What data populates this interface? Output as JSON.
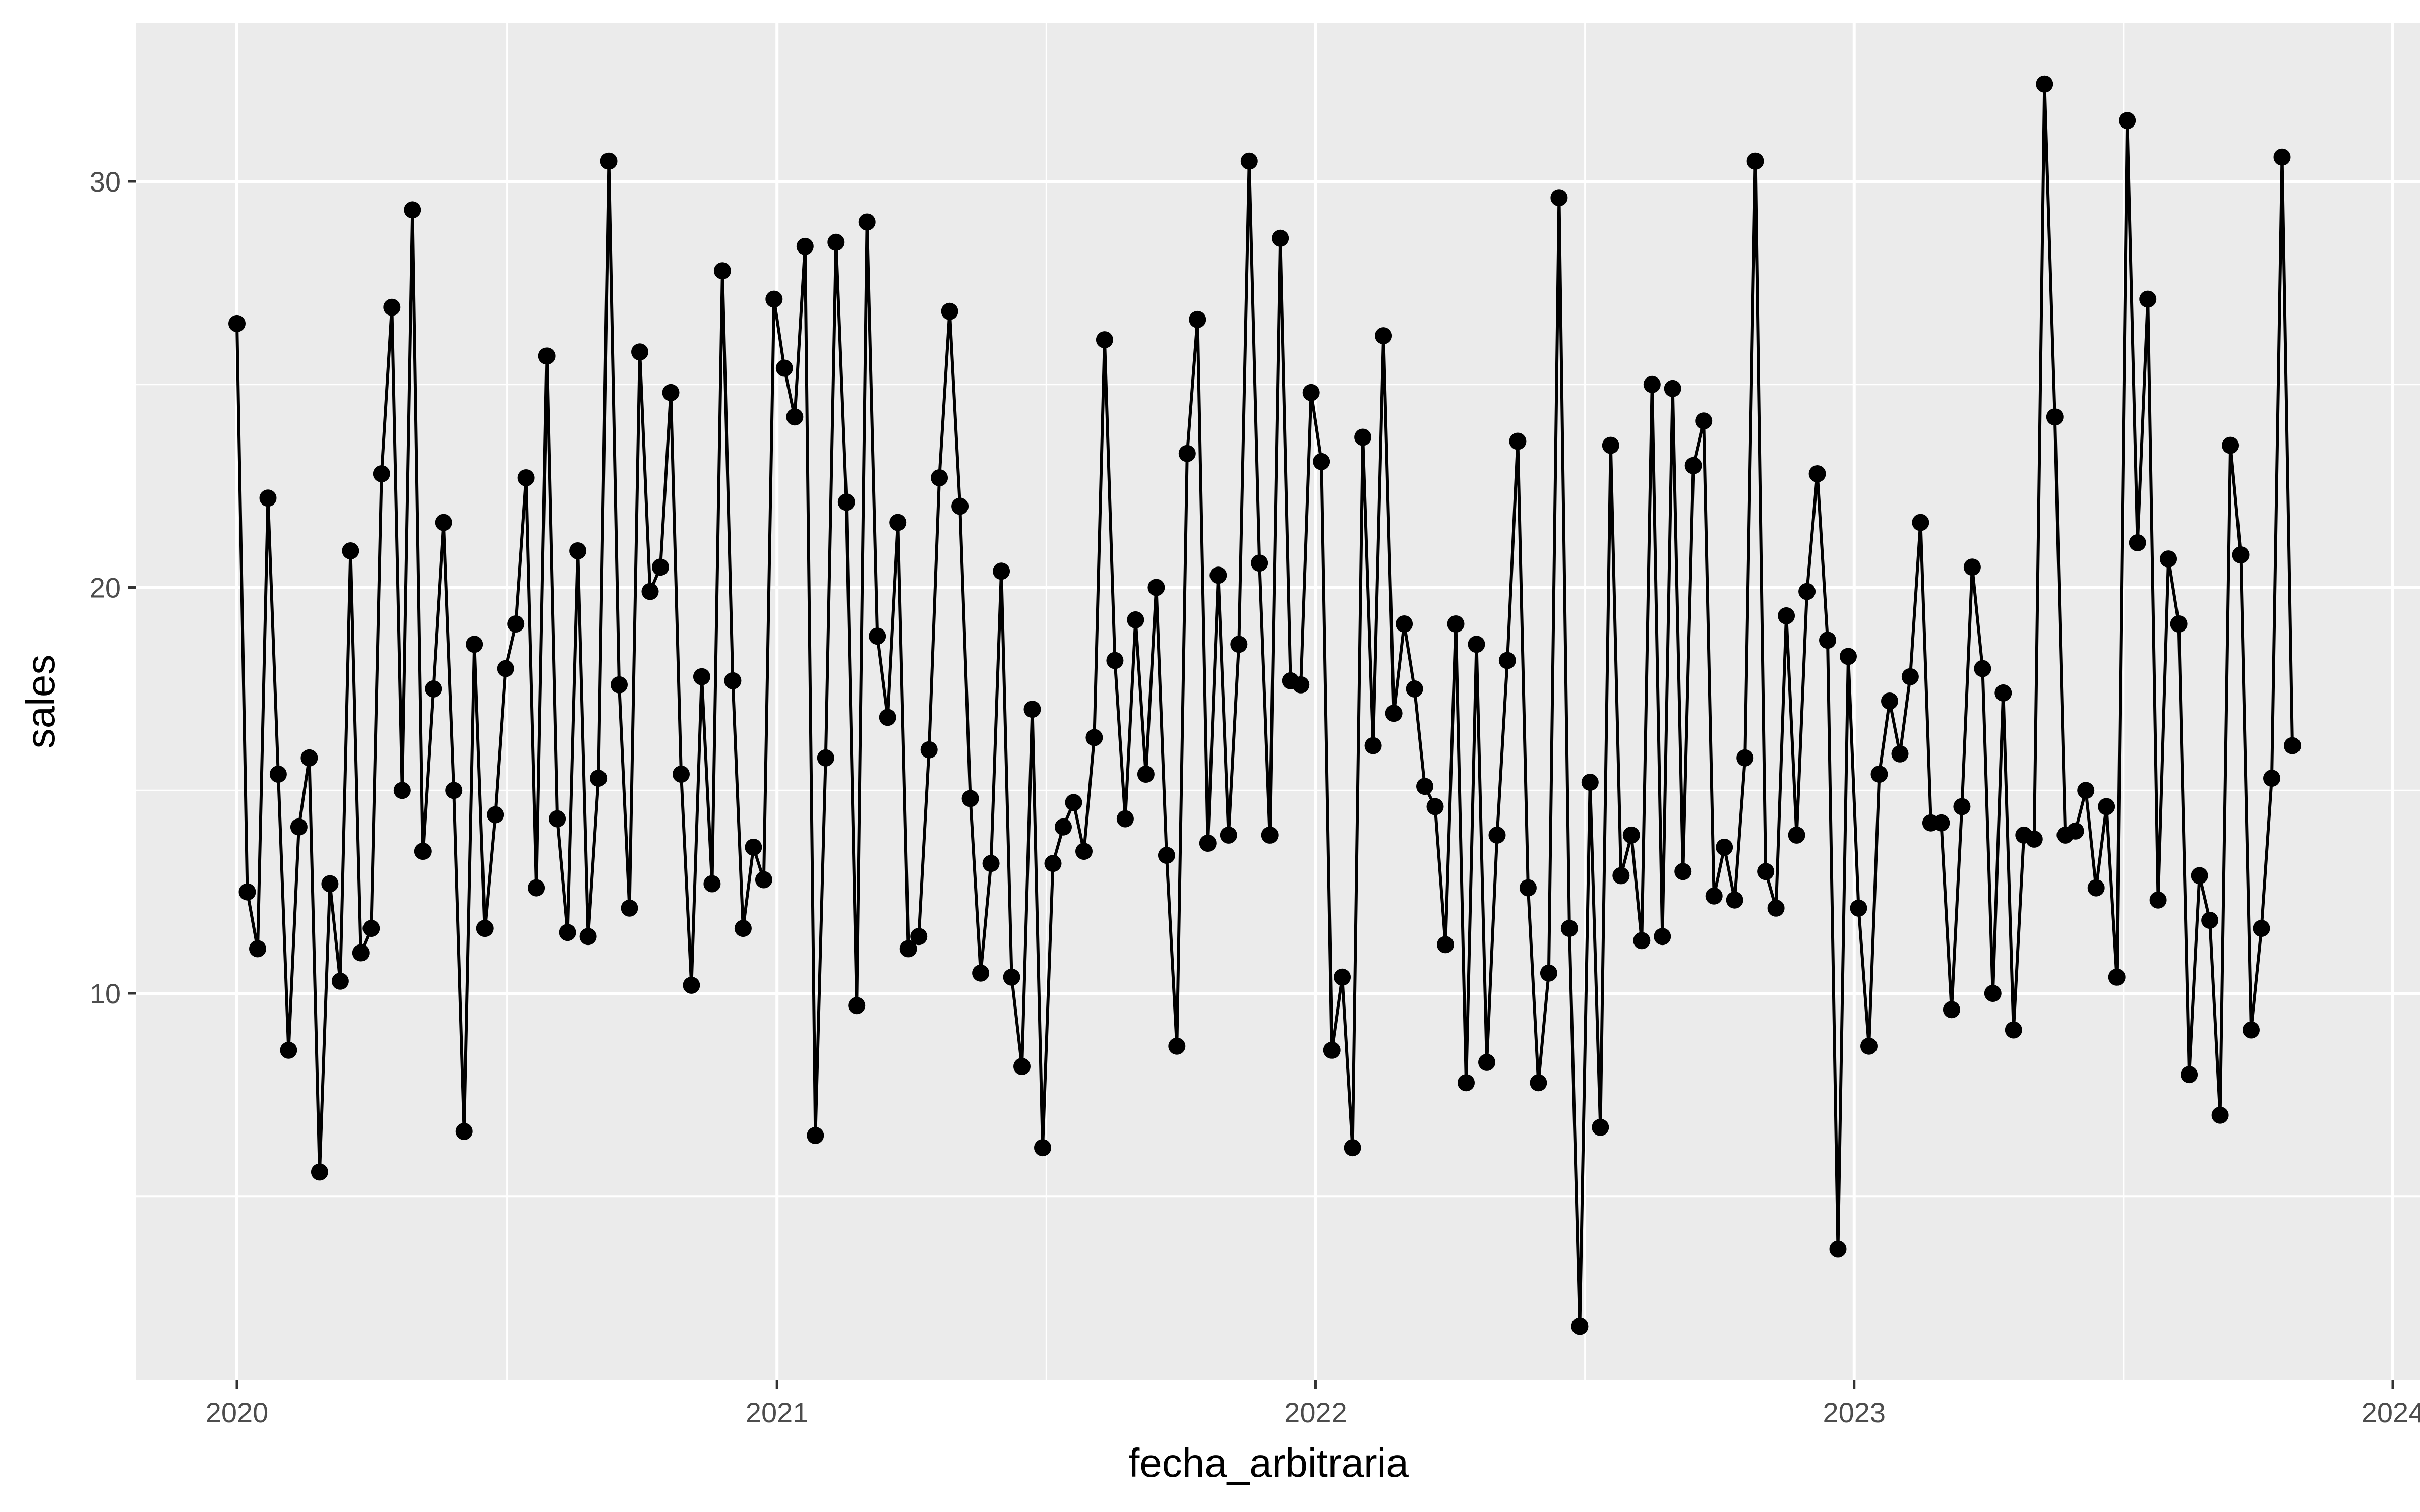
{
  "chart_data": {
    "type": "line",
    "markers": true,
    "xlabel": "fecha_arbitraria",
    "ylabel": "sales",
    "x_axis_type": "date",
    "x_start": "2020-01-01",
    "x_step": "week",
    "x_ticks": [
      "2020",
      "2021",
      "2022",
      "2023",
      "2024"
    ],
    "y_ticks": [
      10,
      20,
      30
    ],
    "ylim": [
      1.0,
      33.4
    ],
    "grid": true,
    "colors": {
      "panel": "#ebebeb",
      "grid": "#ffffff",
      "line": "#000000",
      "point": "#000000"
    },
    "series": [
      {
        "values": [
          26.5,
          12.5,
          11.1,
          22.2,
          15.4,
          8.6,
          14.1,
          15.8,
          5.6,
          12.7,
          10.3,
          20.9,
          11.0,
          11.6,
          22.8,
          26.9,
          15.0,
          29.3,
          13.5,
          17.5,
          21.6,
          15.0,
          6.6,
          18.6,
          11.6,
          14.4,
          18.0,
          19.1,
          22.7,
          12.6,
          25.7,
          14.3,
          11.5,
          20.9,
          11.4,
          15.3,
          30.5,
          17.6,
          12.1,
          25.8,
          19.9,
          20.5,
          24.8,
          15.4,
          10.2,
          17.8,
          12.7,
          27.8,
          17.7,
          11.6,
          13.6,
          12.8,
          27.1,
          25.4,
          24.2,
          28.4,
          6.5,
          15.8,
          28.5,
          22.1,
          9.7,
          29.0,
          18.8,
          16.8,
          21.6,
          11.1,
          11.4,
          16.0,
          22.7,
          26.8,
          22.0,
          14.8,
          10.5,
          13.2,
          20.4,
          10.4,
          8.2,
          17.0,
          6.2,
          13.2,
          14.1,
          14.7,
          13.5,
          16.3,
          26.1,
          18.2,
          14.3,
          19.2,
          15.4,
          20.0,
          13.4,
          8.7,
          23.3,
          26.6,
          13.7,
          20.3,
          13.9,
          18.6,
          30.5,
          20.6,
          13.9,
          28.6,
          17.7,
          17.6,
          24.8,
          23.1,
          8.6,
          10.4,
          6.2,
          23.7,
          16.1,
          26.2,
          16.9,
          19.1,
          17.5,
          15.1,
          14.6,
          11.2,
          19.1,
          7.8,
          18.6,
          8.3,
          13.9,
          18.2,
          23.6,
          12.6,
          7.8,
          10.5,
          29.6,
          11.6,
          1.8,
          15.2,
          6.7,
          23.5,
          12.9,
          13.9,
          11.3,
          25.0,
          11.4,
          24.9,
          13.0,
          23.0,
          24.1,
          12.4,
          13.6,
          12.3,
          15.8,
          30.5,
          13.0,
          12.1,
          19.3,
          13.9,
          19.9,
          22.8,
          18.7,
          3.7,
          18.3,
          12.1,
          8.7,
          15.4,
          17.2,
          15.9,
          17.8,
          21.6,
          14.2,
          14.2,
          9.6,
          14.6,
          20.5,
          18.0,
          10.0,
          17.4,
          9.1,
          13.9,
          13.8,
          32.4,
          24.2,
          13.9,
          14.0,
          15.0,
          12.6,
          14.6,
          10.4,
          31.5,
          21.1,
          27.1,
          12.3,
          20.7,
          19.1,
          8.0,
          12.9,
          11.8,
          7.0,
          23.5,
          20.8,
          9.1,
          11.6,
          15.3,
          30.6,
          16.1
        ]
      }
    ]
  }
}
